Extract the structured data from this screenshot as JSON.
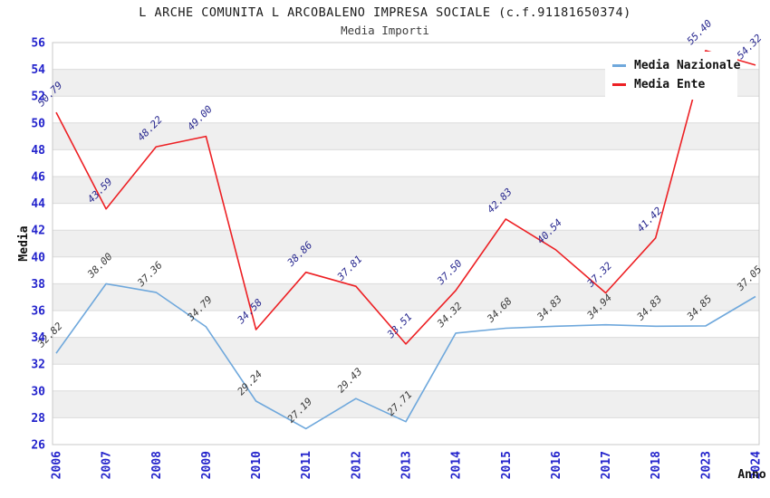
{
  "chart_data": {
    "type": "line",
    "title": "L ARCHE COMUNITA L ARCOBALENO IMPRESA SOCIALE (c.f.91181650374)",
    "subtitle": "Media Importi",
    "xlabel": "Anno",
    "ylabel": "Media",
    "ylim": [
      26,
      56
    ],
    "ytick_step": 2,
    "grid": "horizontal-bands",
    "legend_position": "top-right",
    "categories": [
      "2006",
      "2007",
      "2008",
      "2009",
      "2010",
      "2011",
      "2012",
      "2013",
      "2014",
      "2015",
      "2016",
      "2017",
      "2018",
      "2023",
      "2024"
    ],
    "series": [
      {
        "name": "Media Nazionale",
        "color": "#6FA8DC",
        "label_color": "#3A3A3A",
        "values": [
          32.82,
          38.0,
          37.36,
          34.79,
          29.24,
          27.19,
          29.43,
          27.71,
          34.32,
          34.68,
          34.83,
          34.94,
          34.83,
          34.85,
          37.05
        ]
      },
      {
        "name": "Media Ente",
        "color": "#ED2024",
        "label_color": "#28288F",
        "values": [
          50.79,
          43.59,
          48.22,
          49.0,
          34.58,
          38.86,
          37.81,
          33.51,
          37.5,
          42.83,
          40.54,
          37.32,
          41.42,
          55.4,
          54.32
        ]
      }
    ],
    "style": {
      "tick_label_color": "#2424CC",
      "band_color": "#EFEFEF",
      "gridline_color": "#DBDBDB",
      "border_color": "#C8C8C8",
      "axis_title_color": "#111111"
    }
  }
}
